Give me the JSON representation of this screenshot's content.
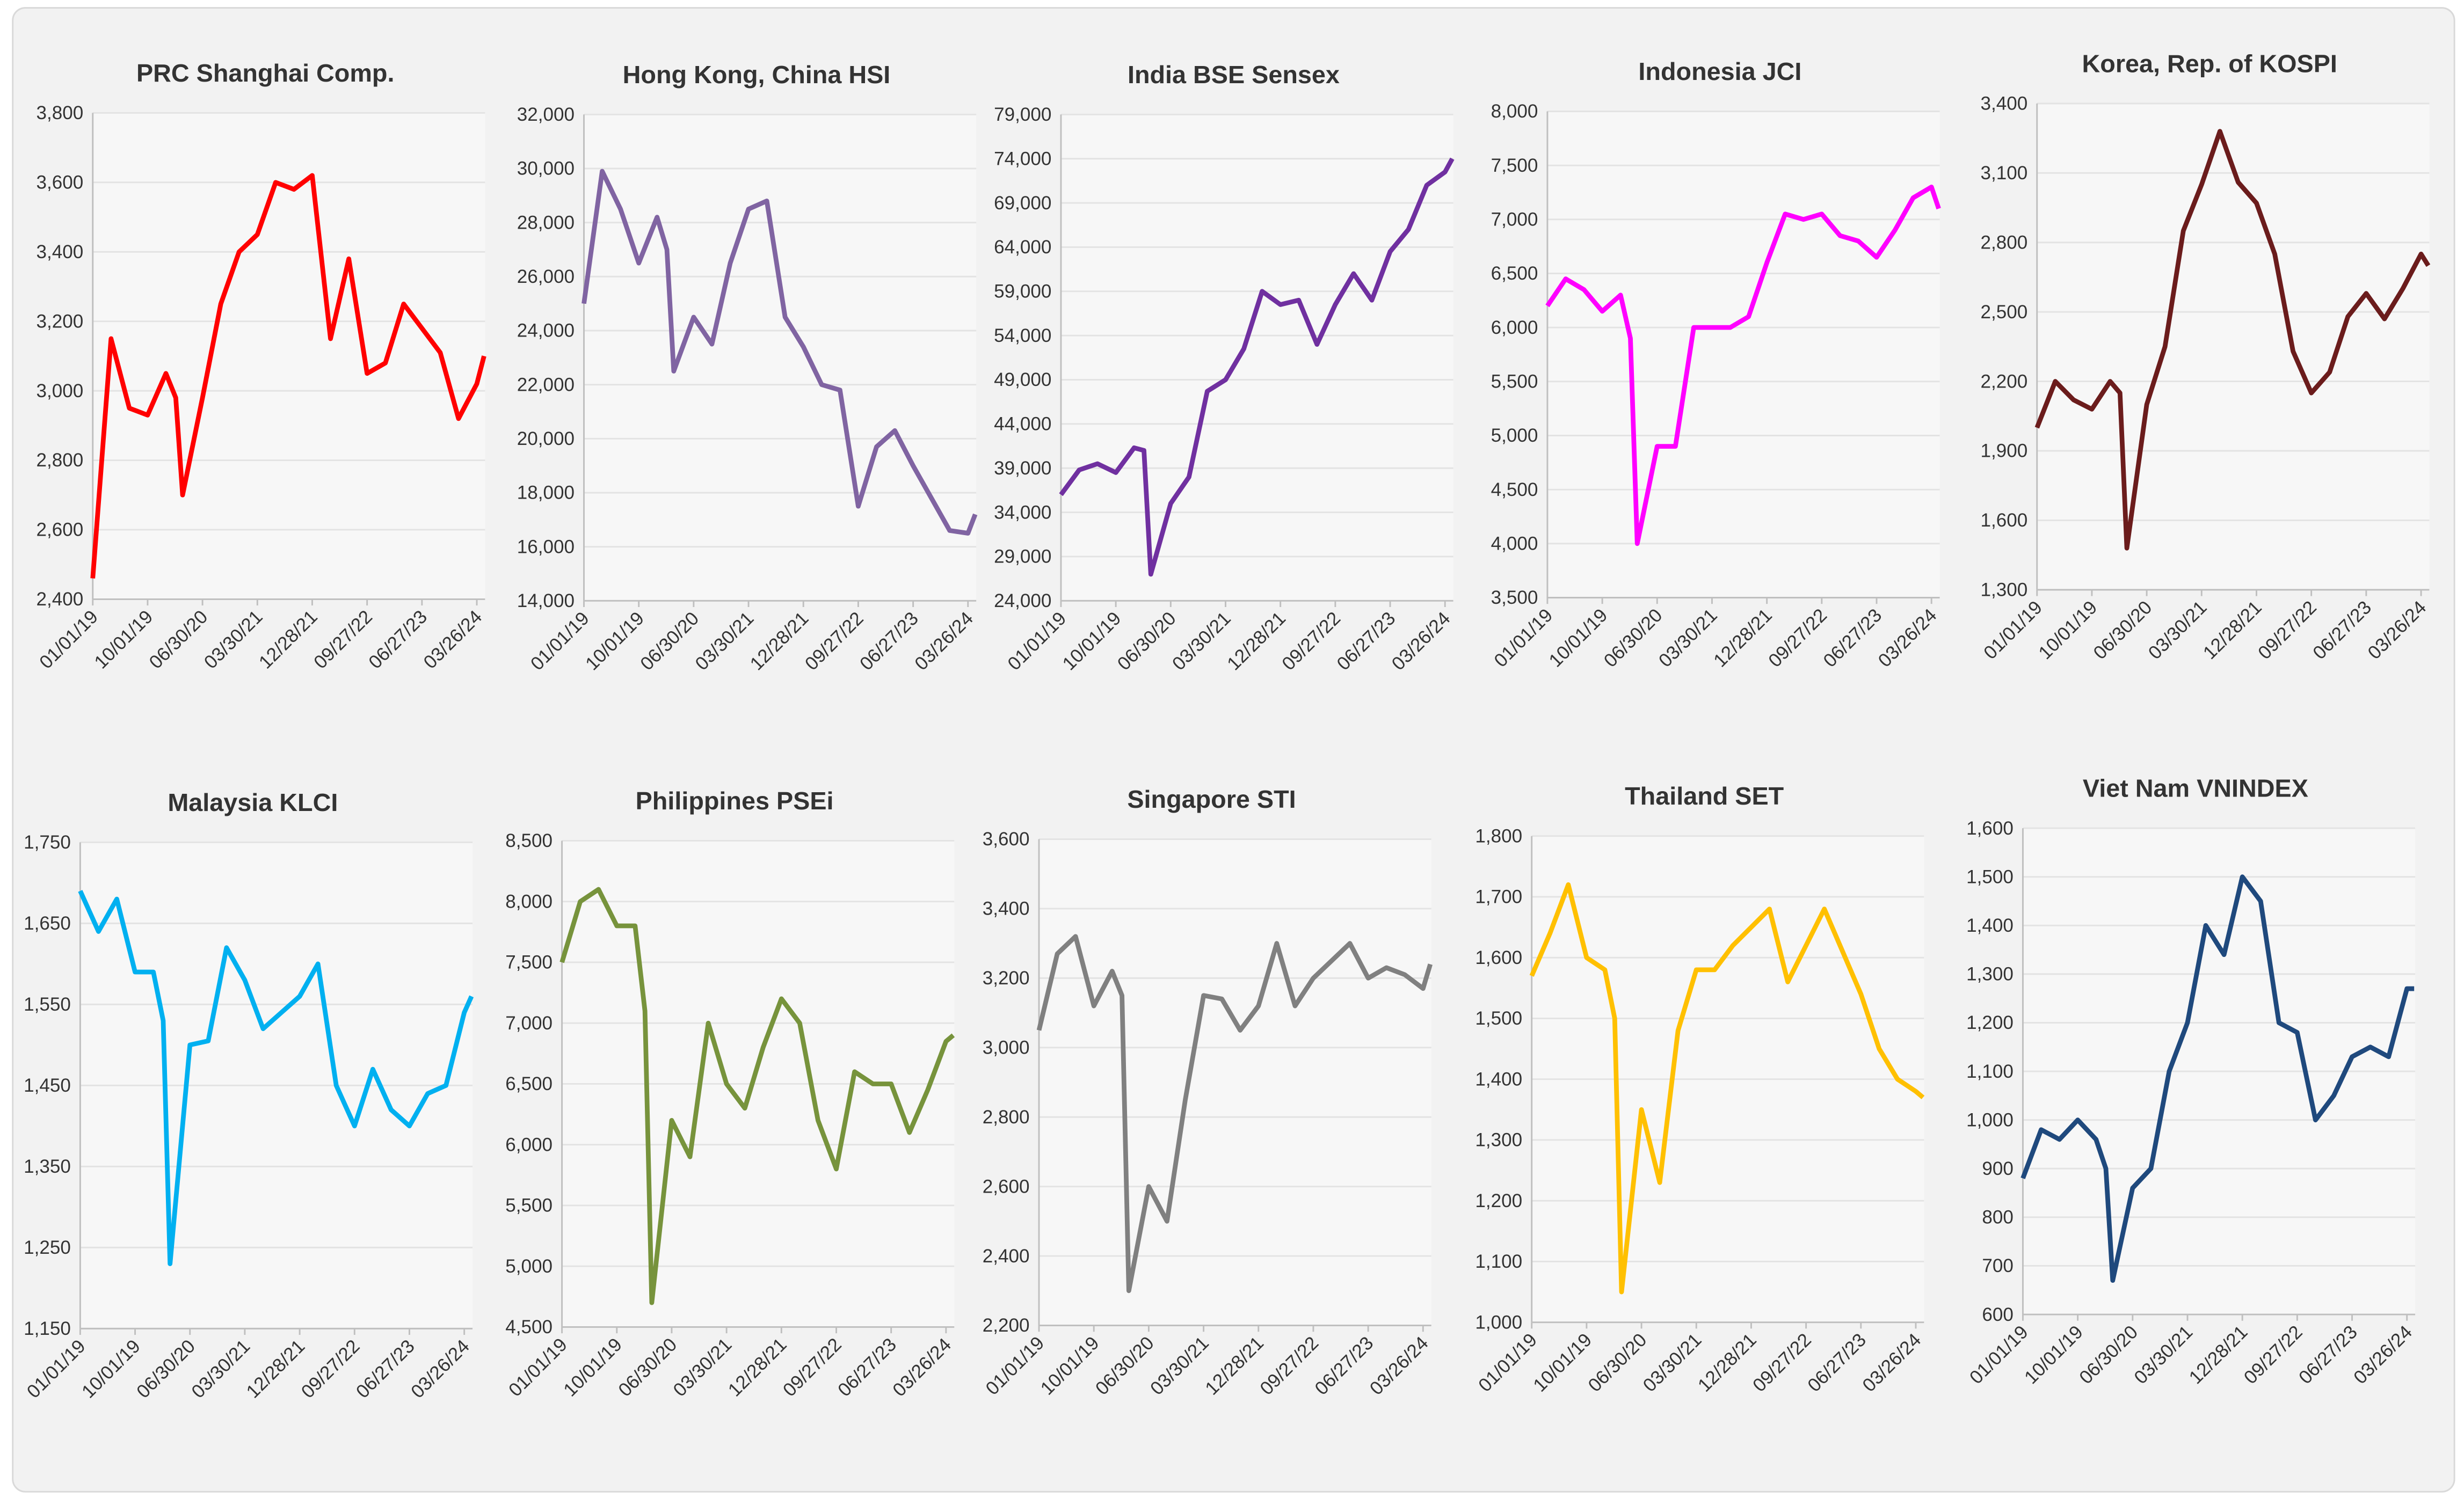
{
  "chart_data": [
    {
      "type": "line",
      "title": "PRC Shanghai Comp.",
      "color": "#ff0000",
      "x": [
        "01/01/19",
        "04/02/19",
        "07/02/19",
        "10/01/19",
        "12/31/19",
        "02/18/20",
        "03/23/20",
        "06/30/20",
        "09/29/20",
        "12/29/20",
        "03/30/21",
        "06/29/21",
        "09/28/21",
        "12/28/21",
        "03/29/22",
        "06/28/22",
        "09/27/22",
        "12/27/22",
        "03/28/23",
        "06/27/23",
        "09/26/23",
        "12/26/23",
        "03/26/24",
        "05/01/24"
      ],
      "values": [
        2460,
        3150,
        2950,
        2930,
        3050,
        2980,
        2700,
        2980,
        3250,
        3400,
        3450,
        3600,
        3580,
        3620,
        3150,
        3380,
        3050,
        3080,
        3250,
        3180,
        3110,
        2920,
        3020,
        3100
      ],
      "xlim": [
        "01/01/19",
        "05/06/24"
      ],
      "xticks": [
        "01/01/19",
        "10/01/19",
        "06/30/20",
        "03/30/21",
        "12/28/21",
        "09/27/22",
        "06/27/23",
        "03/26/24"
      ],
      "ylim": [
        2400,
        3800
      ],
      "yticks": [
        {
          "value": 2400,
          "label": "2,400"
        },
        {
          "value": 2600,
          "label": "2,600"
        },
        {
          "value": 2800,
          "label": "2,800"
        },
        {
          "value": 3000,
          "label": "3,000"
        },
        {
          "value": 3200,
          "label": "3,200"
        },
        {
          "value": 3400,
          "label": "3,400"
        },
        {
          "value": 3600,
          "label": "3,600"
        },
        {
          "value": 3800,
          "label": "3,800"
        }
      ],
      "grid": true
    },
    {
      "type": "line",
      "title": "Hong Kong, China HSI",
      "color": "#8064a2",
      "x": [
        "01/01/19",
        "04/02/19",
        "07/02/19",
        "10/01/19",
        "12/31/19",
        "02/18/20",
        "03/23/20",
        "06/30/20",
        "09/29/20",
        "12/29/20",
        "03/30/21",
        "06/29/21",
        "09/28/21",
        "12/28/21",
        "03/29/22",
        "06/28/22",
        "09/27/22",
        "12/27/22",
        "03/28/23",
        "06/27/23",
        "09/26/23",
        "12/26/23",
        "03/26/24",
        "05/01/24"
      ],
      "values": [
        25000,
        29900,
        28500,
        26500,
        28200,
        27000,
        22500,
        24500,
        23500,
        26500,
        28500,
        28800,
        24500,
        23400,
        22000,
        21800,
        17500,
        19700,
        20300,
        19000,
        17800,
        16600,
        16500,
        17200
      ],
      "xlim": [
        "01/01/19",
        "05/06/24"
      ],
      "xticks": [
        "01/01/19",
        "10/01/19",
        "06/30/20",
        "03/30/21",
        "12/28/21",
        "09/27/22",
        "06/27/23",
        "03/26/24"
      ],
      "ylim": [
        14000,
        32000
      ],
      "yticks": [
        {
          "value": 14000,
          "label": "14,000"
        },
        {
          "value": 16000,
          "label": "16,000"
        },
        {
          "value": 18000,
          "label": "18,000"
        },
        {
          "value": 20000,
          "label": "20,000"
        },
        {
          "value": 22000,
          "label": "22,000"
        },
        {
          "value": 24000,
          "label": "24,000"
        },
        {
          "value": 26000,
          "label": "26,000"
        },
        {
          "value": 28000,
          "label": "28,000"
        },
        {
          "value": 30000,
          "label": "30,000"
        },
        {
          "value": 32000,
          "label": "32,000"
        }
      ],
      "grid": true
    },
    {
      "type": "line",
      "title": "India BSE Sensex",
      "color": "#7030a0",
      "x": [
        "01/01/19",
        "04/02/19",
        "07/02/19",
        "10/01/19",
        "12/31/19",
        "02/18/20",
        "03/23/20",
        "06/30/20",
        "09/29/20",
        "12/29/20",
        "03/30/21",
        "06/29/21",
        "09/28/21",
        "12/28/21",
        "03/29/22",
        "06/28/22",
        "09/27/22",
        "12/27/22",
        "03/28/23",
        "06/27/23",
        "09/26/23",
        "12/26/23",
        "03/26/24",
        "05/01/24"
      ],
      "values": [
        36000,
        38800,
        39500,
        38500,
        41300,
        41000,
        27000,
        35000,
        38000,
        47700,
        49000,
        52500,
        59000,
        57500,
        58000,
        53000,
        57500,
        61000,
        58000,
        63500,
        66000,
        71000,
        72500,
        74000
      ],
      "xlim": [
        "01/01/19",
        "05/06/24"
      ],
      "xticks": [
        "01/01/19",
        "10/01/19",
        "06/30/20",
        "03/30/21",
        "12/28/21",
        "09/27/22",
        "06/27/23",
        "03/26/24"
      ],
      "ylim": [
        24000,
        79000
      ],
      "yticks": [
        {
          "value": 24000,
          "label": "24,000"
        },
        {
          "value": 29000,
          "label": "29,000"
        },
        {
          "value": 34000,
          "label": "34,000"
        },
        {
          "value": 39000,
          "label": "39,000"
        },
        {
          "value": 44000,
          "label": "44,000"
        },
        {
          "value": 49000,
          "label": "49,000"
        },
        {
          "value": 54000,
          "label": "54,000"
        },
        {
          "value": 59000,
          "label": "59,000"
        },
        {
          "value": 64000,
          "label": "64,000"
        },
        {
          "value": 69000,
          "label": "69,000"
        },
        {
          "value": 74000,
          "label": "74,000"
        },
        {
          "value": 79000,
          "label": "79,000"
        }
      ],
      "grid": true
    },
    {
      "type": "line",
      "title": "Indonesia JCI",
      "color": "#ff00ff",
      "x": [
        "01/01/19",
        "04/02/19",
        "07/02/19",
        "10/01/19",
        "12/31/19",
        "02/18/20",
        "03/23/20",
        "06/30/20",
        "09/29/20",
        "12/29/20",
        "03/30/21",
        "06/29/21",
        "09/28/21",
        "12/28/21",
        "03/29/22",
        "06/28/22",
        "09/27/22",
        "12/27/22",
        "03/28/23",
        "06/27/23",
        "09/26/23",
        "12/26/23",
        "03/26/24",
        "05/01/24"
      ],
      "values": [
        6200,
        6450,
        6350,
        6150,
        6300,
        5900,
        4000,
        4900,
        4900,
        6000,
        6000,
        6000,
        6100,
        6600,
        7050,
        7000,
        7050,
        6850,
        6800,
        6650,
        6900,
        7200,
        7300,
        7100
      ],
      "xlim": [
        "01/01/19",
        "05/06/24"
      ],
      "xticks": [
        "01/01/19",
        "10/01/19",
        "06/30/20",
        "03/30/21",
        "12/28/21",
        "09/27/22",
        "06/27/23",
        "03/26/24"
      ],
      "ylim": [
        3500,
        8000
      ],
      "yticks": [
        {
          "value": 3500,
          "label": "3,500"
        },
        {
          "value": 4000,
          "label": "4,000"
        },
        {
          "value": 4500,
          "label": "4,500"
        },
        {
          "value": 5000,
          "label": "5,000"
        },
        {
          "value": 5500,
          "label": "5,500"
        },
        {
          "value": 6000,
          "label": "6,000"
        },
        {
          "value": 6500,
          "label": "6,500"
        },
        {
          "value": 7000,
          "label": "7,000"
        },
        {
          "value": 7500,
          "label": "7,500"
        },
        {
          "value": 8000,
          "label": "8,000"
        }
      ],
      "grid": true
    },
    {
      "type": "line",
      "title": "Korea, Rep. of KOSPI",
      "color": "#6b1c1c",
      "x": [
        "01/01/19",
        "04/02/19",
        "07/02/19",
        "10/01/19",
        "12/31/19",
        "02/18/20",
        "03/23/20",
        "06/30/20",
        "09/29/20",
        "12/29/20",
        "03/30/21",
        "06/29/21",
        "09/28/21",
        "12/28/21",
        "03/29/22",
        "06/28/22",
        "09/27/22",
        "12/27/22",
        "03/28/23",
        "06/27/23",
        "09/26/23",
        "12/26/23",
        "03/26/24",
        "05/01/24"
      ],
      "values": [
        2000,
        2200,
        2120,
        2080,
        2200,
        2150,
        1480,
        2100,
        2350,
        2850,
        3050,
        3280,
        3060,
        2970,
        2750,
        2330,
        2150,
        2240,
        2480,
        2580,
        2470,
        2600,
        2750,
        2700
      ],
      "xlim": [
        "01/01/19",
        "05/06/24"
      ],
      "xticks": [
        "01/01/19",
        "10/01/19",
        "06/30/20",
        "03/30/21",
        "12/28/21",
        "09/27/22",
        "06/27/23",
        "03/26/24"
      ],
      "ylim": [
        1300,
        3400
      ],
      "yticks": [
        {
          "value": 1300,
          "label": "1,300"
        },
        {
          "value": 1600,
          "label": "1,600"
        },
        {
          "value": 1900,
          "label": "1,900"
        },
        {
          "value": 2200,
          "label": "2,200"
        },
        {
          "value": 2500,
          "label": "2,500"
        },
        {
          "value": 2800,
          "label": "2,800"
        },
        {
          "value": 3100,
          "label": "3,100"
        },
        {
          "value": 3400,
          "label": "3,400"
        }
      ],
      "grid": true
    },
    {
      "type": "line",
      "title": "Malaysia KLCI",
      "color": "#00b0f0",
      "x": [
        "01/01/19",
        "04/02/19",
        "07/02/19",
        "10/01/19",
        "12/31/19",
        "02/18/20",
        "03/23/20",
        "06/30/20",
        "09/29/20",
        "12/29/20",
        "03/30/21",
        "06/29/21",
        "09/28/21",
        "12/28/21",
        "03/29/22",
        "06/28/22",
        "09/27/22",
        "12/27/22",
        "03/28/23",
        "06/27/23",
        "09/26/23",
        "12/26/23",
        "03/26/24",
        "05/01/24"
      ],
      "values": [
        1690,
        1640,
        1680,
        1590,
        1590,
        1530,
        1230,
        1500,
        1505,
        1620,
        1580,
        1520,
        1540,
        1560,
        1600,
        1450,
        1400,
        1470,
        1420,
        1400,
        1440,
        1450,
        1540,
        1560
      ],
      "xlim": [
        "01/01/19",
        "05/06/24"
      ],
      "xticks": [
        "01/01/19",
        "10/01/19",
        "06/30/20",
        "03/30/21",
        "12/28/21",
        "09/27/22",
        "06/27/23",
        "03/26/24"
      ],
      "ylim": [
        1150,
        1750
      ],
      "yticks": [
        {
          "value": 1150,
          "label": "1,150"
        },
        {
          "value": 1250,
          "label": "1,250"
        },
        {
          "value": 1350,
          "label": "1,350"
        },
        {
          "value": 1450,
          "label": "1,450"
        },
        {
          "value": 1550,
          "label": "1,550"
        },
        {
          "value": 1650,
          "label": "1,650"
        },
        {
          "value": 1750,
          "label": "1,750"
        }
      ],
      "grid": true
    },
    {
      "type": "line",
      "title": "Philippines PSEi",
      "color": "#77933c",
      "x": [
        "01/01/19",
        "04/02/19",
        "07/02/19",
        "10/01/19",
        "12/31/19",
        "02/18/20",
        "03/23/20",
        "06/30/20",
        "09/29/20",
        "12/29/20",
        "03/30/21",
        "06/29/21",
        "09/28/21",
        "12/28/21",
        "03/29/22",
        "06/28/22",
        "09/27/22",
        "12/27/22",
        "03/28/23",
        "06/27/23",
        "09/26/23",
        "12/26/23",
        "03/26/24",
        "05/01/24"
      ],
      "values": [
        7500,
        8000,
        8100,
        7800,
        7800,
        7100,
        4700,
        6200,
        5900,
        7000,
        6500,
        6300,
        6800,
        7200,
        7000,
        6200,
        5800,
        6600,
        6500,
        6500,
        6100,
        6450,
        6850,
        6900
      ],
      "xlim": [
        "01/01/19",
        "05/06/24"
      ],
      "xticks": [
        "01/01/19",
        "10/01/19",
        "06/30/20",
        "03/30/21",
        "12/28/21",
        "09/27/22",
        "06/27/23",
        "03/26/24"
      ],
      "ylim": [
        4500,
        8500
      ],
      "yticks": [
        {
          "value": 4500,
          "label": "4,500"
        },
        {
          "value": 5000,
          "label": "5,000"
        },
        {
          "value": 5500,
          "label": "5,500"
        },
        {
          "value": 6000,
          "label": "6,000"
        },
        {
          "value": 6500,
          "label": "6,500"
        },
        {
          "value": 7000,
          "label": "7,000"
        },
        {
          "value": 7500,
          "label": "7,500"
        },
        {
          "value": 8000,
          "label": "8,000"
        },
        {
          "value": 8500,
          "label": "8,500"
        }
      ],
      "grid": true
    },
    {
      "type": "line",
      "title": "Singapore STI",
      "color": "#808080",
      "x": [
        "01/01/19",
        "04/02/19",
        "07/02/19",
        "10/01/19",
        "12/31/19",
        "02/18/20",
        "03/23/20",
        "06/30/20",
        "09/29/20",
        "12/29/20",
        "03/30/21",
        "06/29/21",
        "09/28/21",
        "12/28/21",
        "03/29/22",
        "06/28/22",
        "09/27/22",
        "12/27/22",
        "03/28/23",
        "06/27/23",
        "09/26/23",
        "12/26/23",
        "03/26/24",
        "05/01/24"
      ],
      "values": [
        3050,
        3270,
        3320,
        3120,
        3220,
        3150,
        2300,
        2600,
        2500,
        2850,
        3150,
        3140,
        3050,
        3120,
        3300,
        3120,
        3200,
        3250,
        3300,
        3200,
        3230,
        3210,
        3170,
        3240
      ],
      "xlim": [
        "01/01/19",
        "05/06/24"
      ],
      "xticks": [
        "01/01/19",
        "10/01/19",
        "06/30/20",
        "03/30/21",
        "12/28/21",
        "09/27/22",
        "06/27/23",
        "03/26/24"
      ],
      "ylim": [
        2200,
        3600
      ],
      "yticks": [
        {
          "value": 2200,
          "label": "2,200"
        },
        {
          "value": 2400,
          "label": "2,400"
        },
        {
          "value": 2600,
          "label": "2,600"
        },
        {
          "value": 2800,
          "label": "2,800"
        },
        {
          "value": 3000,
          "label": "3,000"
        },
        {
          "value": 3200,
          "label": "3,200"
        },
        {
          "value": 3400,
          "label": "3,400"
        },
        {
          "value": 3600,
          "label": "3,600"
        }
      ],
      "grid": true
    },
    {
      "type": "line",
      "title": "Thailand SET",
      "color": "#ffc000",
      "x": [
        "01/01/19",
        "04/02/19",
        "07/02/19",
        "10/01/19",
        "12/31/19",
        "02/18/20",
        "03/23/20",
        "06/30/20",
        "09/29/20",
        "12/29/20",
        "03/30/21",
        "06/29/21",
        "09/28/21",
        "12/28/21",
        "03/29/22",
        "06/28/22",
        "09/27/22",
        "12/27/22",
        "03/28/23",
        "06/27/23",
        "09/26/23",
        "12/26/23",
        "03/26/24",
        "05/01/24"
      ],
      "values": [
        1570,
        1640,
        1720,
        1600,
        1580,
        1500,
        1050,
        1350,
        1230,
        1480,
        1580,
        1580,
        1620,
        1650,
        1680,
        1560,
        1620,
        1680,
        1610,
        1540,
        1450,
        1400,
        1380,
        1370
      ],
      "xlim": [
        "01/01/19",
        "05/06/24"
      ],
      "xticks": [
        "01/01/19",
        "10/01/19",
        "06/30/20",
        "03/30/21",
        "12/28/21",
        "09/27/22",
        "06/27/23",
        "03/26/24"
      ],
      "ylim": [
        1000,
        1800
      ],
      "yticks": [
        {
          "value": 1000,
          "label": "1,000"
        },
        {
          "value": 1100,
          "label": "1,100"
        },
        {
          "value": 1200,
          "label": "1,200"
        },
        {
          "value": 1300,
          "label": "1,300"
        },
        {
          "value": 1400,
          "label": "1,400"
        },
        {
          "value": 1500,
          "label": "1,500"
        },
        {
          "value": 1600,
          "label": "1,600"
        },
        {
          "value": 1700,
          "label": "1,700"
        },
        {
          "value": 1800,
          "label": "1,800"
        }
      ],
      "grid": true
    },
    {
      "type": "line",
      "title": "Viet Nam VNINDEX",
      "color": "#1f497d",
      "x": [
        "01/01/19",
        "04/02/19",
        "07/02/19",
        "10/01/19",
        "12/31/19",
        "02/18/20",
        "03/23/20",
        "06/30/20",
        "09/29/20",
        "12/29/20",
        "03/30/21",
        "06/29/21",
        "09/28/21",
        "12/28/21",
        "03/29/22",
        "06/28/22",
        "09/27/22",
        "12/27/22",
        "03/28/23",
        "06/27/23",
        "09/26/23",
        "12/26/23",
        "03/26/24",
        "05/01/24"
      ],
      "values": [
        880,
        980,
        960,
        1000,
        960,
        900,
        670,
        860,
        900,
        1100,
        1200,
        1400,
        1340,
        1500,
        1450,
        1200,
        1180,
        1000,
        1050,
        1130,
        1150,
        1130,
        1270,
        1270
      ],
      "xlim": [
        "01/01/19",
        "05/06/24"
      ],
      "xticks": [
        "01/01/19",
        "10/01/19",
        "06/30/20",
        "03/30/21",
        "12/28/21",
        "09/27/22",
        "06/27/23",
        "03/26/24"
      ],
      "ylim": [
        600,
        1600
      ],
      "yticks": [
        600,
        700,
        800,
        900,
        {
          "value": 1000,
          "label": "1,000"
        },
        {
          "value": 1100,
          "label": "1,100"
        },
        {
          "value": 1200,
          "label": "1,200"
        },
        {
          "value": 1300,
          "label": "1,300"
        },
        {
          "value": 1400,
          "label": "1,400"
        },
        {
          "value": 1500,
          "label": "1,500"
        },
        {
          "value": 1600,
          "label": "1,600"
        }
      ],
      "grid": true
    }
  ]
}
